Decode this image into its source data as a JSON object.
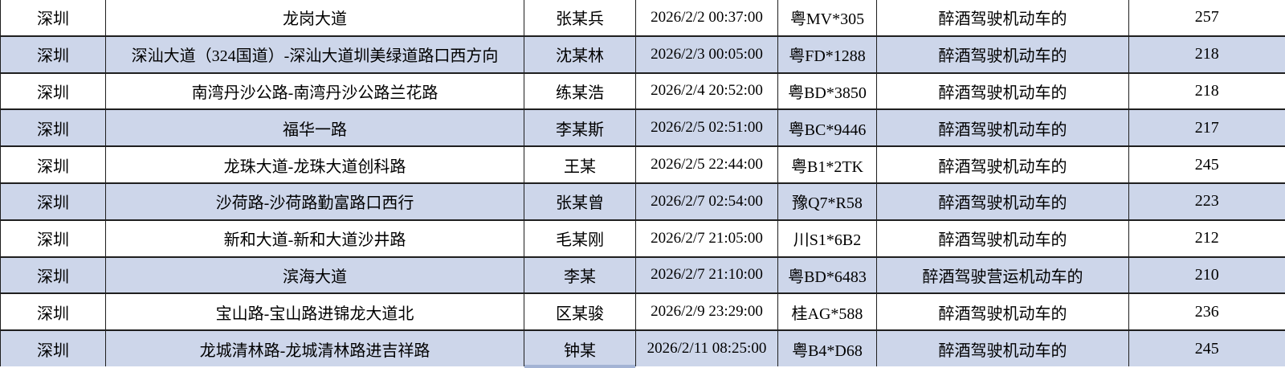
{
  "colors": {
    "alt_row_background": "#cdd6ea",
    "grid_border": "#1f1f1f",
    "next_row_peek": "#a3b3d4"
  },
  "table": {
    "rows": [
      {
        "cells": [
          "深圳",
          "龙岗大道",
          "张某兵",
          "2026/2/2 00:37:00",
          "粤MV*305",
          "醉酒驾驶机动车的",
          "257"
        ]
      },
      {
        "cells": [
          "深圳",
          "深汕大道（324国道）-深汕大道圳美绿道路口西方向",
          "沈某林",
          "2026/2/3 00:05:00",
          "粤FD*1288",
          "醉酒驾驶机动车的",
          "218"
        ]
      },
      {
        "cells": [
          "深圳",
          "南湾丹沙公路-南湾丹沙公路兰花路",
          "练某浩",
          "2026/2/4 20:52:00",
          "粤BD*3850",
          "醉酒驾驶机动车的",
          "218"
        ]
      },
      {
        "cells": [
          "深圳",
          "福华一路",
          "李某斯",
          "2026/2/5 02:51:00",
          "粤BC*9446",
          "醉酒驾驶机动车的",
          "217"
        ]
      },
      {
        "cells": [
          "深圳",
          "龙珠大道-龙珠大道创科路",
          "王某",
          "2026/2/5 22:44:00",
          "粤B1*2TK",
          "醉酒驾驶机动车的",
          "245"
        ]
      },
      {
        "cells": [
          "深圳",
          "沙荷路-沙荷路勤富路口西行",
          "张某曾",
          "2026/2/7 02:54:00",
          "豫Q7*R58",
          "醉酒驾驶机动车的",
          "223"
        ]
      },
      {
        "cells": [
          "深圳",
          "新和大道-新和大道沙井路",
          "毛某刚",
          "2026/2/7 21:05:00",
          "川S1*6B2",
          "醉酒驾驶机动车的",
          "212"
        ]
      },
      {
        "cells": [
          "深圳",
          "滨海大道",
          "李某",
          "2026/2/7 21:10:00",
          "粤BD*6483",
          "醉酒驾驶营运机动车的",
          "210"
        ]
      },
      {
        "cells": [
          "深圳",
          "宝山路-宝山路进锦龙大道北",
          "区某骏",
          "2026/2/9 23:29:00",
          "桂AG*588",
          "醉酒驾驶机动车的",
          "236"
        ]
      },
      {
        "cells": [
          "深圳",
          "龙城清林路-龙城清林路进吉祥路",
          "钟某",
          "2026/2/11 08:25:00",
          "粤B4*D68",
          "醉酒驾驶机动车的",
          "245"
        ]
      }
    ]
  }
}
